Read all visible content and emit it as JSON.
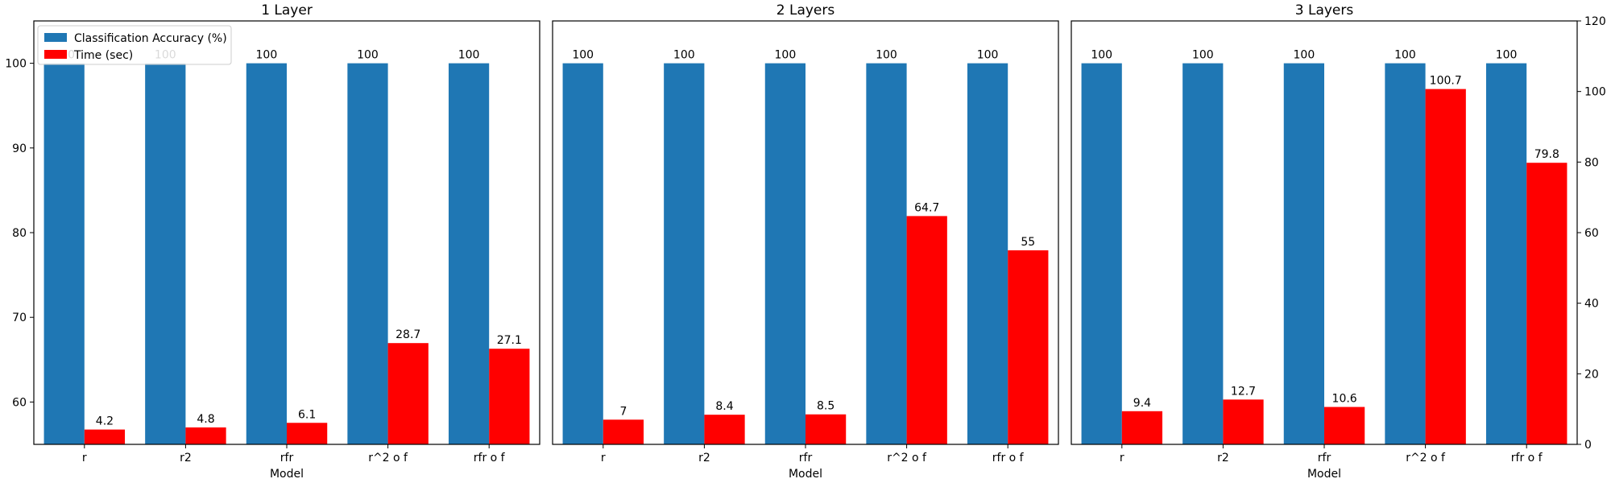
{
  "chart_data": {
    "type": "bar",
    "x_tick_labels": [
      "r",
      "r2",
      "rfr",
      "r^2 o f",
      "rfr o f"
    ],
    "xlabel": "Model",
    "left_axis": {
      "ylim": [
        55,
        105
      ],
      "ticks": [
        60,
        70,
        80,
        90,
        100
      ]
    },
    "right_axis": {
      "ylim": [
        0,
        120
      ],
      "ticks": [
        0,
        20,
        40,
        60,
        80,
        100,
        120
      ]
    },
    "legend": {
      "placement": "upper-left",
      "entries": [
        {
          "label": "Classification Accuracy (%)",
          "color": "#1f77b4"
        },
        {
          "label": "Time (sec)",
          "color": "#ff0000"
        }
      ]
    },
    "series_colors": {
      "accuracy": "#1f77b4",
      "time": "#ff0000"
    },
    "panels": [
      {
        "title": "1 Layer",
        "categories": [
          "r",
          "r2",
          "rfr",
          "r^2 o f",
          "rfr o f"
        ],
        "series": [
          {
            "name": "Classification Accuracy (%)",
            "axis": "left",
            "values": [
              100,
              100,
              100,
              100,
              100
            ],
            "labels": [
              "100",
              "100",
              "100",
              "100",
              "100"
            ]
          },
          {
            "name": "Time (sec)",
            "axis": "right",
            "values": [
              4.2,
              4.8,
              6.1,
              28.7,
              27.1
            ],
            "labels": [
              "4.2",
              "4.8",
              "6.1",
              "28.7",
              "27.1"
            ]
          }
        ]
      },
      {
        "title": "2 Layers",
        "categories": [
          "r",
          "r2",
          "rfr",
          "r^2 o f",
          "rfr o f"
        ],
        "series": [
          {
            "name": "Classification Accuracy (%)",
            "axis": "left",
            "values": [
              100,
              100,
              100,
              100,
              100
            ],
            "labels": [
              "100",
              "100",
              "100",
              "100",
              "100"
            ]
          },
          {
            "name": "Time (sec)",
            "axis": "right",
            "values": [
              7,
              8.4,
              8.5,
              64.7,
              55
            ],
            "labels": [
              "7",
              "8.4",
              "8.5",
              "64.7",
              "55"
            ]
          }
        ]
      },
      {
        "title": "3 Layers",
        "categories": [
          "r",
          "r2",
          "rfr",
          "r^2 o f",
          "rfr o f"
        ],
        "series": [
          {
            "name": "Classification Accuracy (%)",
            "axis": "left",
            "values": [
              100,
              100,
              100,
              100,
              100
            ],
            "labels": [
              "100",
              "100",
              "100",
              "100",
              "100"
            ]
          },
          {
            "name": "Time (sec)",
            "axis": "right",
            "values": [
              9.4,
              12.7,
              10.6,
              100.7,
              79.8
            ],
            "labels": [
              "9.4",
              "12.7",
              "10.6",
              "100.7",
              "79.8"
            ]
          }
        ]
      }
    ]
  }
}
